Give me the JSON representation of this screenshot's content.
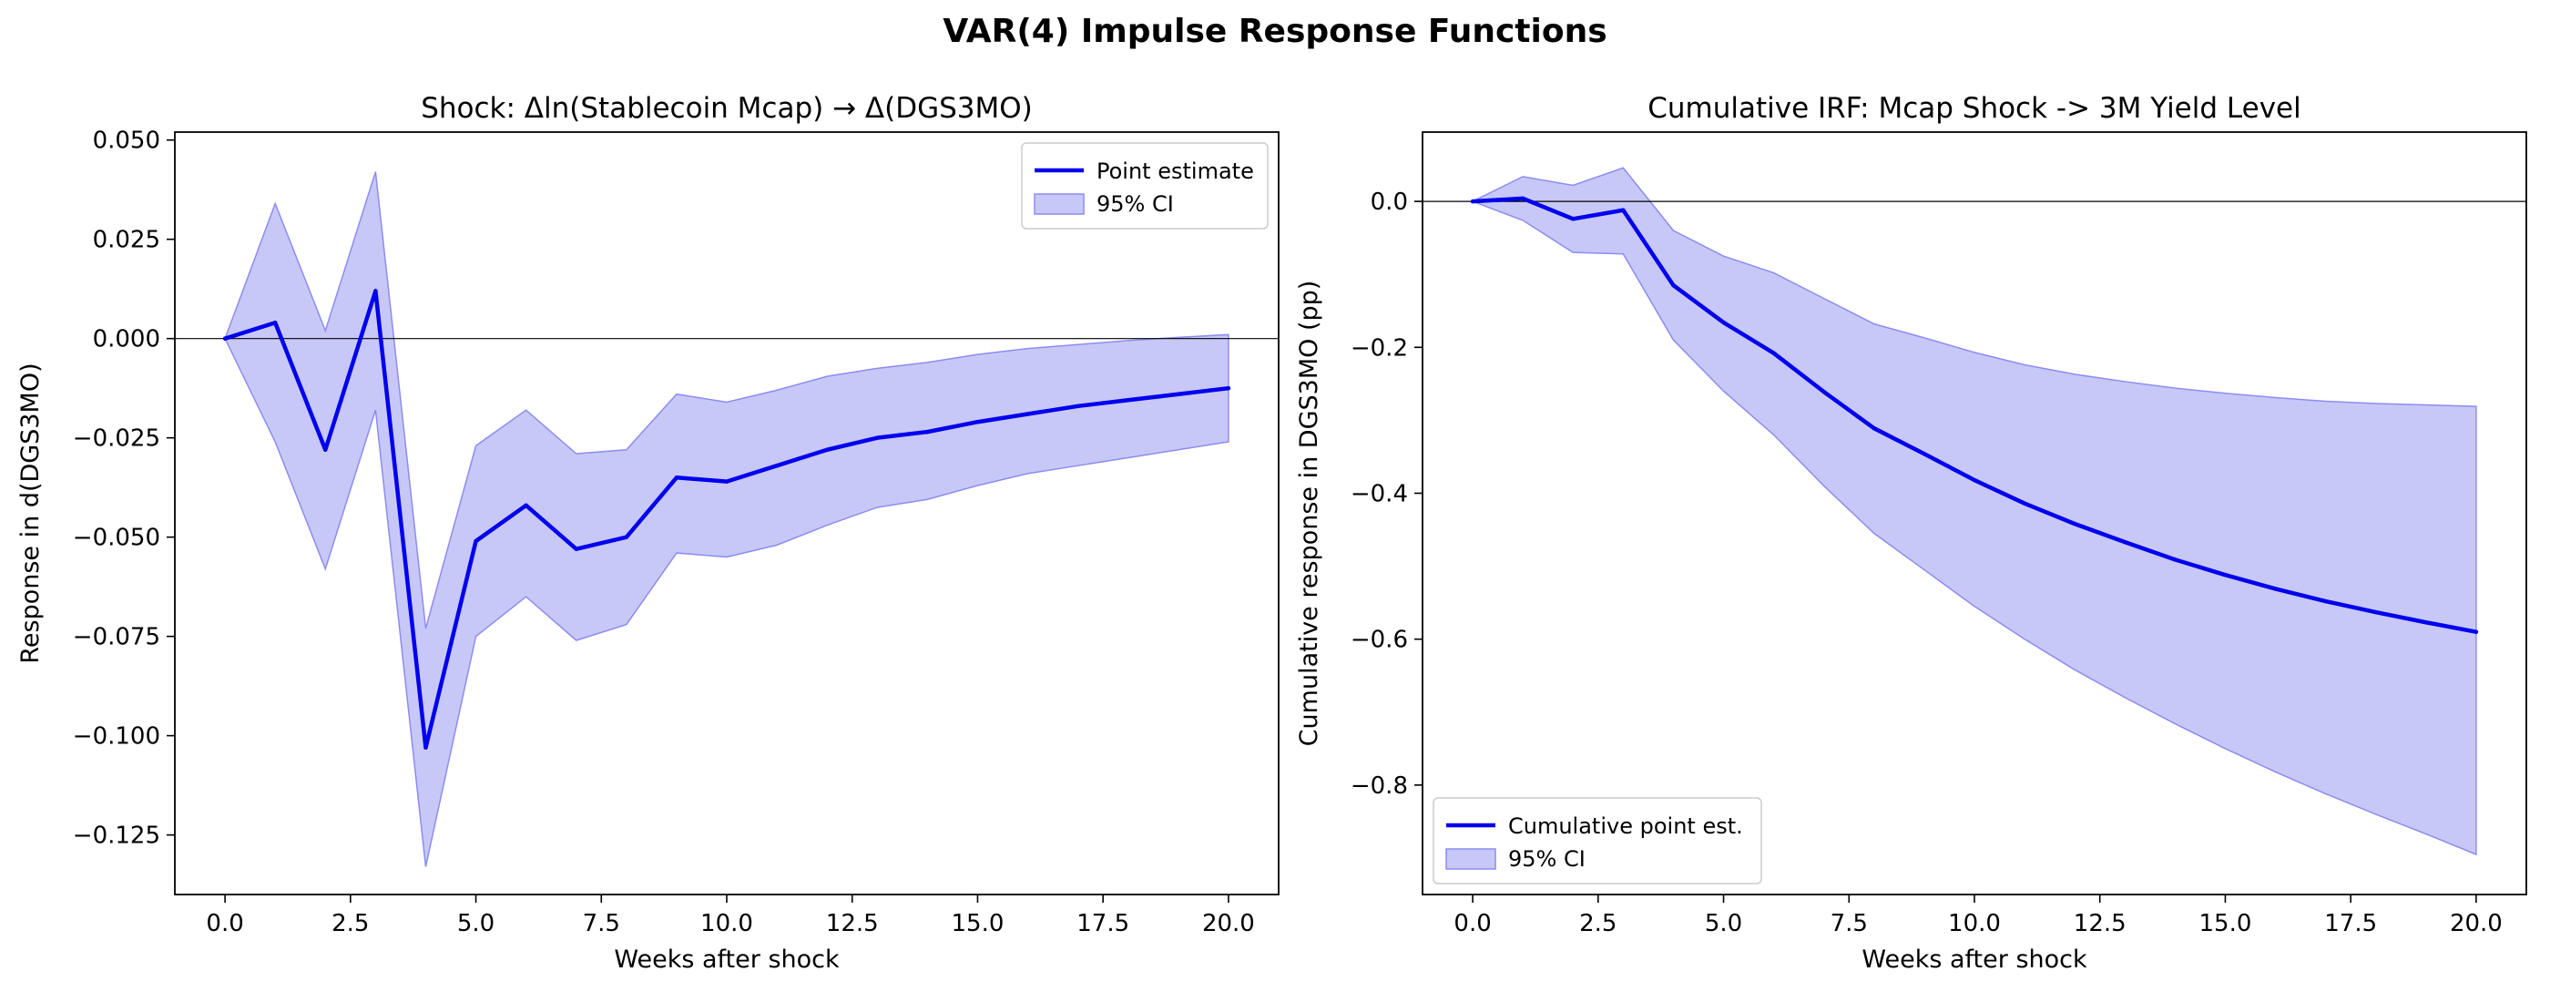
{
  "figure": {
    "suptitle": "VAR(4) Impulse Response Functions"
  },
  "colors": {
    "line": "#0000ee",
    "band": "#b3b3f5",
    "band_edge": "#8c8cf0",
    "zero_line": "#000000"
  },
  "chart_data": [
    {
      "type": "line",
      "title": "Shock: Δln(Stablecoin Mcap) → Δ(DGS3MO)",
      "xlabel": "Weeks after shock",
      "ylabel": "Response in d(DGS3MO)",
      "xlim": [
        -1,
        21
      ],
      "ylim": [
        -0.14,
        0.052
      ],
      "xticks": [
        0,
        2.5,
        5,
        7.5,
        10,
        12.5,
        15,
        17.5,
        20
      ],
      "xtick_labels": [
        "0.0",
        "2.5",
        "5.0",
        "7.5",
        "10.0",
        "12.5",
        "15.0",
        "17.5",
        "20.0"
      ],
      "yticks": [
        -0.125,
        -0.1,
        -0.075,
        -0.05,
        -0.025,
        0,
        0.025,
        0.05
      ],
      "ytick_labels": [
        "−0.125",
        "−0.100",
        "−0.075",
        "−0.050",
        "−0.025",
        "0.000",
        "0.025",
        "0.050"
      ],
      "legend_position": "top-right",
      "legend": [
        "Point estimate",
        "95% CI"
      ],
      "x": [
        0,
        1,
        2,
        3,
        4,
        5,
        6,
        7,
        8,
        9,
        10,
        11,
        12,
        13,
        14,
        15,
        16,
        17,
        18,
        19,
        20
      ],
      "series": [
        {
          "name": "Point estimate",
          "values": [
            0.0,
            0.004,
            -0.028,
            0.012,
            -0.103,
            -0.051,
            -0.042,
            -0.053,
            -0.05,
            -0.035,
            -0.036,
            -0.032,
            -0.028,
            -0.025,
            -0.0235,
            -0.021,
            -0.019,
            -0.017,
            -0.0155,
            -0.014,
            -0.0125
          ]
        }
      ],
      "ci": {
        "name": "95% CI",
        "lower": [
          0.0,
          -0.026,
          -0.058,
          -0.018,
          -0.133,
          -0.075,
          -0.065,
          -0.076,
          -0.072,
          -0.054,
          -0.055,
          -0.052,
          -0.047,
          -0.0425,
          -0.0405,
          -0.037,
          -0.034,
          -0.032,
          -0.03,
          -0.028,
          -0.026
        ],
        "upper": [
          0.0,
          0.034,
          0.002,
          0.042,
          -0.073,
          -0.027,
          -0.018,
          -0.029,
          -0.028,
          -0.014,
          -0.016,
          -0.013,
          -0.0095,
          -0.0075,
          -0.006,
          -0.004,
          -0.0025,
          -0.0015,
          -0.0005,
          0.0003,
          0.001
        ]
      }
    },
    {
      "type": "line",
      "title": "Cumulative IRF: Mcap Shock -> 3M Yield Level",
      "xlabel": "Weeks after shock",
      "ylabel": "Cumulative response in DGS3MO (pp)",
      "xlim": [
        -1,
        21
      ],
      "ylim": [
        -0.95,
        0.095
      ],
      "xticks": [
        0,
        2.5,
        5,
        7.5,
        10,
        12.5,
        15,
        17.5,
        20
      ],
      "xtick_labels": [
        "0.0",
        "2.5",
        "5.0",
        "7.5",
        "10.0",
        "12.5",
        "15.0",
        "17.5",
        "20.0"
      ],
      "yticks": [
        -0.8,
        -0.6,
        -0.4,
        -0.2,
        0
      ],
      "ytick_labels": [
        "−0.8",
        "−0.6",
        "−0.4",
        "−0.2",
        "0.0"
      ],
      "legend_position": "bottom-left",
      "legend": [
        "Cumulative point est.",
        "95% CI"
      ],
      "x": [
        0,
        1,
        2,
        3,
        4,
        5,
        6,
        7,
        8,
        9,
        10,
        11,
        12,
        13,
        14,
        15,
        16,
        17,
        18,
        19,
        20
      ],
      "series": [
        {
          "name": "Cumulative point est.",
          "values": [
            0.0,
            0.004,
            -0.024,
            -0.012,
            -0.115,
            -0.166,
            -0.208,
            -0.261,
            -0.311,
            -0.346,
            -0.382,
            -0.414,
            -0.442,
            -0.467,
            -0.491,
            -0.512,
            -0.531,
            -0.548,
            -0.563,
            -0.577,
            -0.59
          ]
        }
      ],
      "ci": {
        "name": "95% CI",
        "lower": [
          0.0,
          -0.026,
          -0.07,
          -0.072,
          -0.19,
          -0.26,
          -0.32,
          -0.39,
          -0.455,
          -0.505,
          -0.555,
          -0.6,
          -0.642,
          -0.68,
          -0.716,
          -0.75,
          -0.782,
          -0.812,
          -0.84,
          -0.867,
          -0.895
        ],
        "upper": [
          0.0,
          0.034,
          0.022,
          0.046,
          -0.04,
          -0.075,
          -0.098,
          -0.133,
          -0.168,
          -0.187,
          -0.207,
          -0.224,
          -0.237,
          -0.247,
          -0.256,
          -0.263,
          -0.269,
          -0.274,
          -0.277,
          -0.279,
          -0.281
        ]
      }
    }
  ]
}
